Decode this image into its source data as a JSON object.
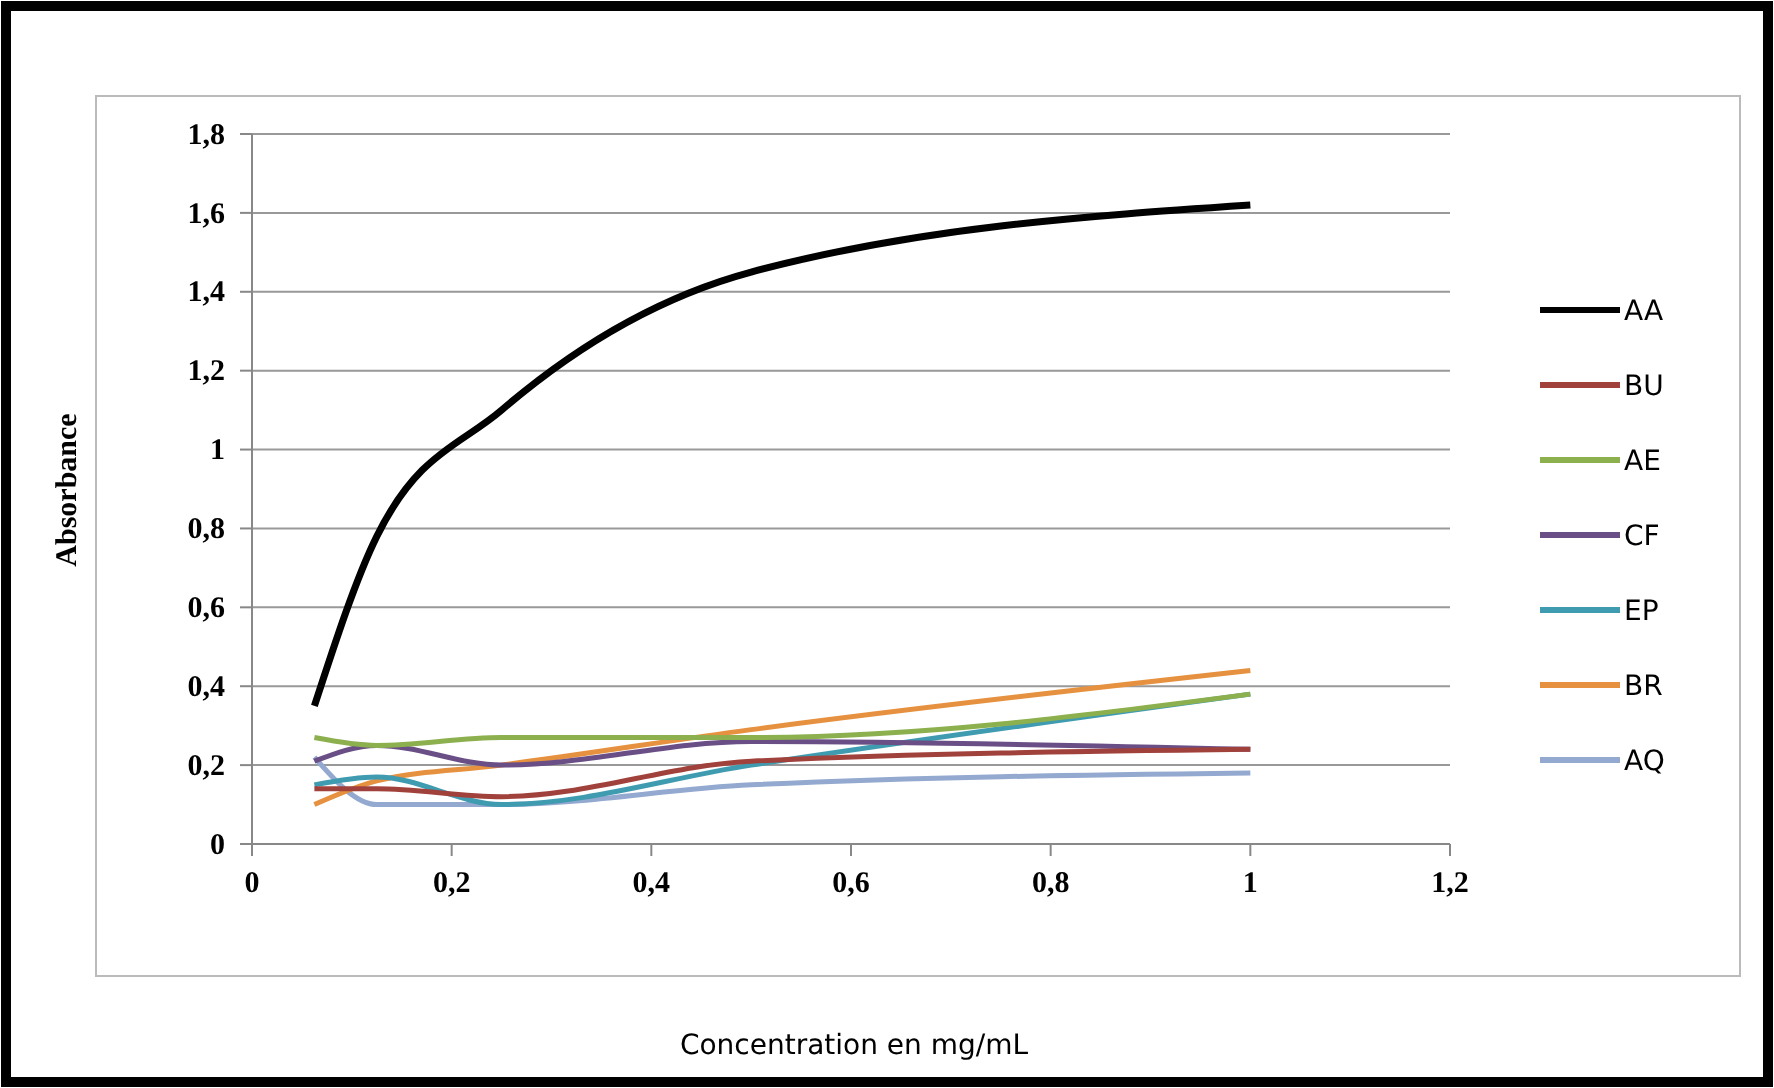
{
  "chart_data": {
    "type": "line",
    "xlabel": "Concentration en mg/mL",
    "ylabel": "Absorbance",
    "x": [
      0.0625,
      0.125,
      0.25,
      0.5,
      1
    ],
    "xlim": [
      0,
      1.2
    ],
    "xticks": [
      0,
      {
        "value": 0.2,
        "label": "0,2"
      },
      {
        "value": 0.4,
        "label": "0,4"
      },
      {
        "value": 0.6,
        "label": "0,6"
      },
      {
        "value": 0.8,
        "label": "0,8"
      },
      1,
      {
        "value": 1.2,
        "label": "1,2"
      }
    ],
    "ylim": [
      0,
      1.8
    ],
    "yticks": [
      0,
      {
        "value": 0.2,
        "label": "0,2"
      },
      {
        "value": 0.4,
        "label": "0,4"
      },
      {
        "value": 0.6,
        "label": "0,6"
      },
      {
        "value": 0.8,
        "label": "0,8"
      },
      1,
      {
        "value": 1.2,
        "label": "1,2"
      },
      {
        "value": 1.4,
        "label": "1,4"
      },
      {
        "value": 1.6,
        "label": "1,6"
      },
      {
        "value": 1.8,
        "label": "1,8"
      }
    ],
    "grid": "y",
    "legend": "right",
    "marker": "none",
    "line_style": "solid",
    "series": [
      {
        "name": "AA",
        "color": "#000000",
        "values": [
          0.35,
          0.78,
          1.1,
          1.45,
          1.62
        ]
      },
      {
        "name": "BU",
        "color": "#a0413c",
        "values": [
          0.14,
          0.14,
          0.12,
          0.21,
          0.24
        ]
      },
      {
        "name": "AE",
        "color": "#8db04f",
        "values": [
          0.27,
          0.25,
          0.27,
          0.27,
          0.38
        ]
      },
      {
        "name": "CF",
        "color": "#6a4e86",
        "values": [
          0.21,
          0.25,
          0.2,
          0.26,
          0.24
        ]
      },
      {
        "name": "EP",
        "color": "#3f9bb0",
        "values": [
          0.15,
          0.17,
          0.1,
          0.2,
          0.38
        ]
      },
      {
        "name": "BR",
        "color": "#e6913f",
        "values": [
          0.1,
          0.16,
          0.2,
          0.29,
          0.44
        ]
      },
      {
        "name": "AQ",
        "color": "#93a9cf",
        "values": [
          0.22,
          0.1,
          0.1,
          0.15,
          0.18
        ]
      }
    ]
  }
}
